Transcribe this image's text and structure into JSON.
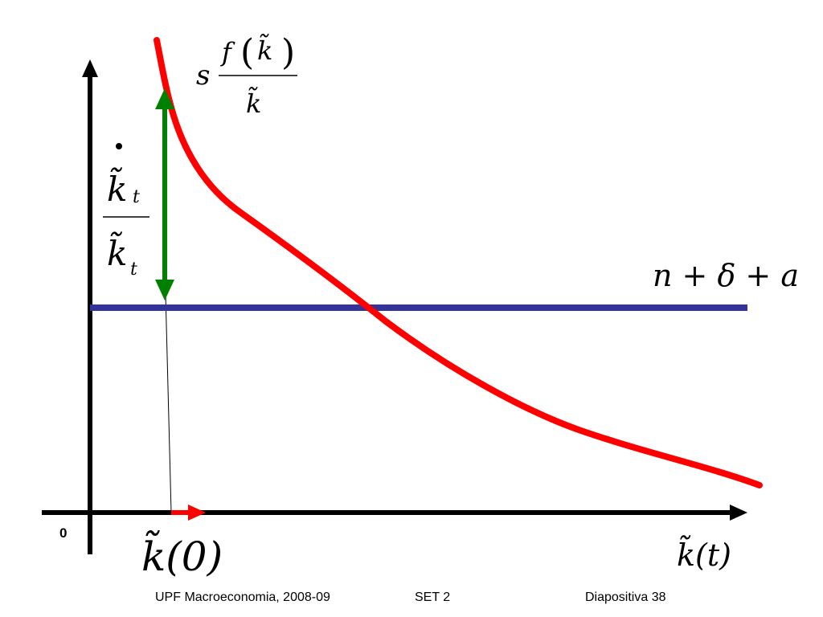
{
  "diagram": {
    "origin_label": "0",
    "curve_label": {
      "coef": "s",
      "numerator": "f",
      "arg": "k̃",
      "denominator": "k̃"
    },
    "line_label": "n + δ + a",
    "growth_label": {
      "numerator": "k̃",
      "numerator_sub": "t",
      "denominator": "k̃",
      "denominator_sub": "t"
    },
    "x_start_label": "k̃(0)",
    "x_axis_label": "k̃(t)",
    "colors": {
      "axes": "#000000",
      "curve": "#ff0000",
      "line": "#333399",
      "arrow": "#008000",
      "shift_arrow": "#ff0000"
    }
  },
  "footer": {
    "course": "UPF Macroeconomia, 2008-09",
    "set": "SET 2",
    "slide": "Diapositiva 38"
  }
}
